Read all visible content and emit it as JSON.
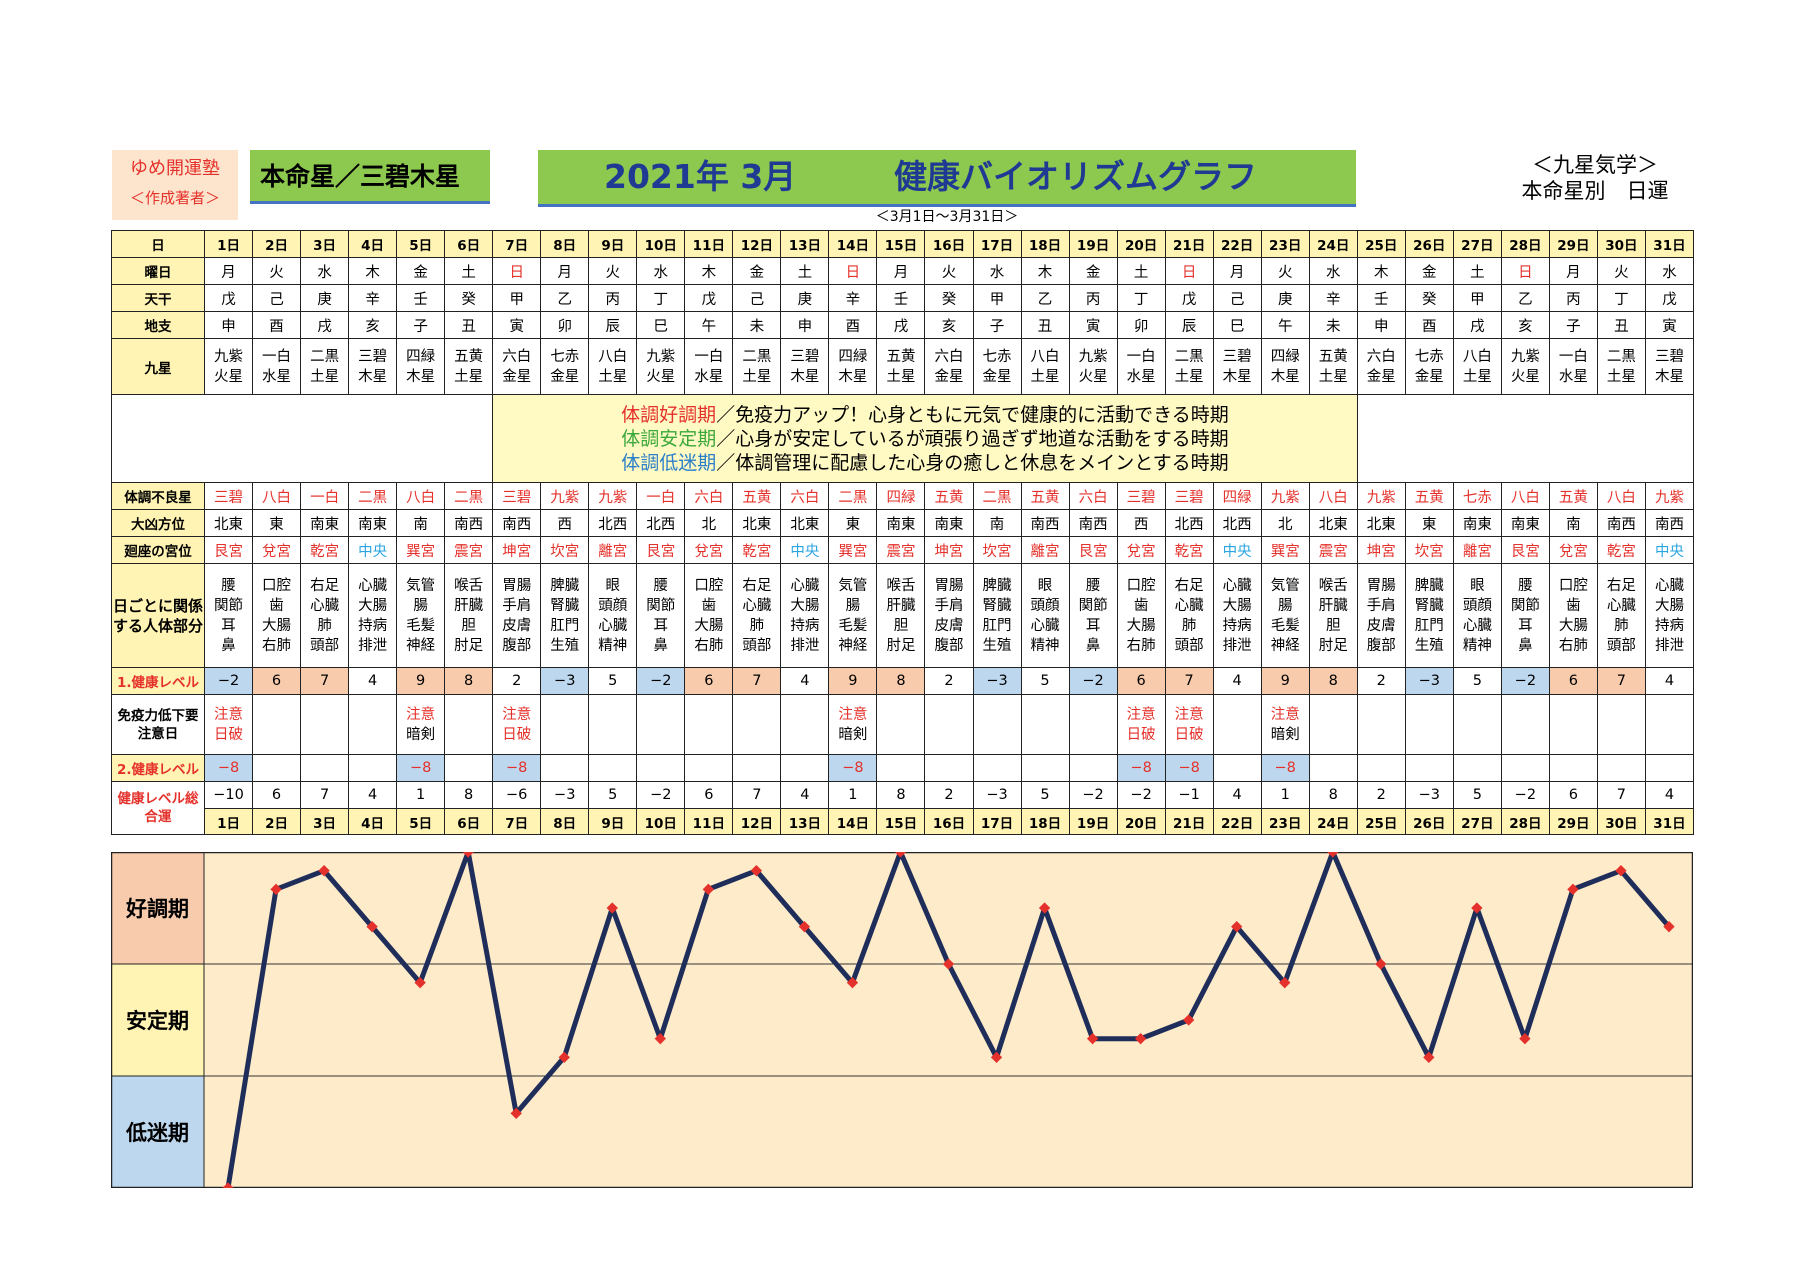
{
  "header": {
    "brand_line1": "ゆめ開運塾",
    "brand_line2": "＜作成著者＞",
    "honmei": "本命星／三碧木星",
    "year_month": "2021年 3月",
    "title": "健康バイオリズムグラフ",
    "range": "＜3月1日～3月31日＞",
    "kyusei_line1": "＜九星気学＞",
    "kyusei_line2": "本命星別　日運"
  },
  "row_labels": {
    "day": "日",
    "weekday": "曜日",
    "tenkan": "天干",
    "chishi": "地支",
    "kyusei": "九星",
    "bad_star": "体調不良星",
    "direction": "大凶方位",
    "palace": "廻座の宮位",
    "body": "日ごとに関係する人体部分",
    "health1": "1.健康レベル",
    "immune": "免疫力低下要注意日",
    "health2": "2.健康レベル",
    "total": "健康レベル総合運"
  },
  "legend": {
    "line1_term": "体調好調期",
    "line1_text": "／免疫力アップ！心身ともに元気で健康的に活動できる時期",
    "line2_term": "体調安定期",
    "line2_text": "／心身が安定しているが頑張り過ぎず地道な活動をする時期",
    "line3_term": "体調低迷期",
    "line3_text": "／体調管理に配慮した心身の癒しと休息をメインとする時期"
  },
  "days": [
    "1日",
    "2日",
    "3日",
    "4日",
    "5日",
    "6日",
    "7日",
    "8日",
    "9日",
    "10日",
    "11日",
    "12日",
    "13日",
    "14日",
    "15日",
    "16日",
    "17日",
    "18日",
    "19日",
    "20日",
    "21日",
    "22日",
    "23日",
    "24日",
    "25日",
    "26日",
    "27日",
    "28日",
    "29日",
    "30日",
    "31日"
  ],
  "weekdays": [
    "月",
    "火",
    "水",
    "木",
    "金",
    "土",
    "日",
    "月",
    "火",
    "水",
    "木",
    "金",
    "土",
    "日",
    "月",
    "火",
    "水",
    "木",
    "金",
    "土",
    "日",
    "月",
    "火",
    "水",
    "木",
    "金",
    "土",
    "日",
    "月",
    "火",
    "水"
  ],
  "tenkan": [
    "戊",
    "己",
    "庚",
    "辛",
    "壬",
    "癸",
    "甲",
    "乙",
    "丙",
    "丁",
    "戊",
    "己",
    "庚",
    "辛",
    "壬",
    "癸",
    "甲",
    "乙",
    "丙",
    "丁",
    "戊",
    "己",
    "庚",
    "辛",
    "壬",
    "癸",
    "甲",
    "乙",
    "丙",
    "丁",
    "戊"
  ],
  "chishi": [
    "申",
    "酉",
    "戌",
    "亥",
    "子",
    "丑",
    "寅",
    "卯",
    "辰",
    "巳",
    "午",
    "未",
    "申",
    "酉",
    "戌",
    "亥",
    "子",
    "丑",
    "寅",
    "卯",
    "辰",
    "巳",
    "午",
    "未",
    "申",
    "酉",
    "戌",
    "亥",
    "子",
    "丑",
    "寅"
  ],
  "kyusei": [
    [
      "九紫",
      "火星"
    ],
    [
      "一白",
      "水星"
    ],
    [
      "二黒",
      "土星"
    ],
    [
      "三碧",
      "木星"
    ],
    [
      "四緑",
      "木星"
    ],
    [
      "五黄",
      "土星"
    ],
    [
      "六白",
      "金星"
    ],
    [
      "七赤",
      "金星"
    ],
    [
      "八白",
      "土星"
    ],
    [
      "九紫",
      "火星"
    ],
    [
      "一白",
      "水星"
    ],
    [
      "二黒",
      "土星"
    ],
    [
      "三碧",
      "木星"
    ],
    [
      "四緑",
      "木星"
    ],
    [
      "五黄",
      "土星"
    ],
    [
      "六白",
      "金星"
    ],
    [
      "七赤",
      "金星"
    ],
    [
      "八白",
      "土星"
    ],
    [
      "九紫",
      "火星"
    ],
    [
      "一白",
      "水星"
    ],
    [
      "二黒",
      "土星"
    ],
    [
      "三碧",
      "木星"
    ],
    [
      "四緑",
      "木星"
    ],
    [
      "五黄",
      "土星"
    ],
    [
      "六白",
      "金星"
    ],
    [
      "七赤",
      "金星"
    ],
    [
      "八白",
      "土星"
    ],
    [
      "九紫",
      "火星"
    ],
    [
      "一白",
      "水星"
    ],
    [
      "二黒",
      "土星"
    ],
    [
      "三碧",
      "木星"
    ]
  ],
  "bad_star": [
    "三碧",
    "八白",
    "一白",
    "二黒",
    "八白",
    "二黒",
    "三碧",
    "九紫",
    "九紫",
    "一白",
    "六白",
    "五黄",
    "六白",
    "二黒",
    "四緑",
    "五黄",
    "二黒",
    "五黄",
    "六白",
    "三碧",
    "三碧",
    "四緑",
    "九紫",
    "八白",
    "九紫",
    "五黄",
    "七赤",
    "八白",
    "五黄",
    "八白",
    "九紫"
  ],
  "direction": [
    "北東",
    "東",
    "南東",
    "南東",
    "南",
    "南西",
    "南西",
    "西",
    "北西",
    "北西",
    "北",
    "北東",
    "北東",
    "東",
    "南東",
    "南東",
    "南",
    "南西",
    "南西",
    "西",
    "北西",
    "北西",
    "北",
    "北東",
    "北東",
    "東",
    "南東",
    "南東",
    "南",
    "南西",
    "南西"
  ],
  "palace": [
    "艮宮",
    "兌宮",
    "乾宮",
    "中央",
    "巽宮",
    "震宮",
    "坤宮",
    "坎宮",
    "離宮",
    "艮宮",
    "兌宮",
    "乾宮",
    "中央",
    "巽宮",
    "震宮",
    "坤宮",
    "坎宮",
    "離宮",
    "艮宮",
    "兌宮",
    "乾宮",
    "中央",
    "巽宮",
    "震宮",
    "坤宮",
    "坎宮",
    "離宮",
    "艮宮",
    "兌宮",
    "乾宮",
    "中央"
  ],
  "body": [
    [
      "腰",
      "関節",
      "耳",
      "鼻"
    ],
    [
      "口腔",
      "歯",
      "大腸",
      "右肺"
    ],
    [
      "右足",
      "心臓",
      "肺",
      "頭部"
    ],
    [
      "心臓",
      "大腸",
      "持病",
      "排泄"
    ],
    [
      "気管",
      "腸",
      "毛髪",
      "神経"
    ],
    [
      "喉舌",
      "肝臓",
      "胆",
      "肘足"
    ],
    [
      "胃腸",
      "手肩",
      "皮膚",
      "腹部"
    ],
    [
      "脾臓",
      "腎臓",
      "肛門",
      "生殖"
    ],
    [
      "眼",
      "頭顔",
      "心臓",
      "精神"
    ],
    [
      "腰",
      "関節",
      "耳",
      "鼻"
    ],
    [
      "口腔",
      "歯",
      "大腸",
      "右肺"
    ],
    [
      "右足",
      "心臓",
      "肺",
      "頭部"
    ],
    [
      "心臓",
      "大腸",
      "持病",
      "排泄"
    ],
    [
      "気管",
      "腸",
      "毛髪",
      "神経"
    ],
    [
      "喉舌",
      "肝臓",
      "胆",
      "肘足"
    ],
    [
      "胃腸",
      "手肩",
      "皮膚",
      "腹部"
    ],
    [
      "脾臓",
      "腎臓",
      "肛門",
      "生殖"
    ],
    [
      "眼",
      "頭顔",
      "心臓",
      "精神"
    ],
    [
      "腰",
      "関節",
      "耳",
      "鼻"
    ],
    [
      "口腔",
      "歯",
      "大腸",
      "右肺"
    ],
    [
      "右足",
      "心臓",
      "肺",
      "頭部"
    ],
    [
      "心臓",
      "大腸",
      "持病",
      "排泄"
    ],
    [
      "気管",
      "腸",
      "毛髪",
      "神経"
    ],
    [
      "喉舌",
      "肝臓",
      "胆",
      "肘足"
    ],
    [
      "胃腸",
      "手肩",
      "皮膚",
      "腹部"
    ],
    [
      "脾臓",
      "腎臓",
      "肛門",
      "生殖"
    ],
    [
      "眼",
      "頭顔",
      "心臓",
      "精神"
    ],
    [
      "腰",
      "関節",
      "耳",
      "鼻"
    ],
    [
      "口腔",
      "歯",
      "大腸",
      "右肺"
    ],
    [
      "右足",
      "心臓",
      "肺",
      "頭部"
    ],
    [
      "心臓",
      "大腸",
      "持病",
      "排泄"
    ]
  ],
  "health1": [
    "−2",
    "6",
    "7",
    "4",
    "9",
    "8",
    "2",
    "−3",
    "5",
    "−2",
    "6",
    "7",
    "4",
    "9",
    "8",
    "2",
    "−3",
    "5",
    "−2",
    "6",
    "7",
    "4",
    "9",
    "8",
    "2",
    "−3",
    "5",
    "−2",
    "6",
    "7",
    "4"
  ],
  "immune": [
    [
      "注意",
      "日破"
    ],
    [],
    [],
    [],
    [
      "注意",
      "暗剣"
    ],
    [],
    [
      "注意",
      "日破"
    ],
    [],
    [],
    [],
    [],
    [],
    [],
    [
      "注意",
      "暗剣"
    ],
    [],
    [],
    [],
    [],
    [],
    [
      "注意",
      "日破"
    ],
    [
      "注意",
      "日破"
    ],
    [],
    [
      "注意",
      "暗剣"
    ],
    [],
    [],
    [],
    [],
    [],
    [],
    [],
    []
  ],
  "health2": [
    "−8",
    "",
    "",
    "",
    "−8",
    "",
    "−8",
    "",
    "",
    "",
    "",
    "",
    "",
    "−8",
    "",
    "",
    "",
    "",
    "",
    "−8",
    "−8",
    "",
    "−8",
    "",
    "",
    "",
    "",
    "",
    "",
    "",
    ""
  ],
  "total": [
    "−10",
    "6",
    "7",
    "4",
    "1",
    "8",
    "−6",
    "−3",
    "5",
    "−2",
    "6",
    "7",
    "4",
    "1",
    "8",
    "2",
    "−3",
    "5",
    "−2",
    "−2",
    "−1",
    "4",
    "1",
    "8",
    "2",
    "−3",
    "5",
    "−2",
    "6",
    "7",
    "4"
  ],
  "colors": {
    "good_band": "#f8cbad",
    "stable_band": "#fff4b3",
    "low_band": "#bdd7ee",
    "chart_bg": "#fdebc9",
    "line": "#1f2d5a",
    "marker": "#e5312b",
    "header_green": "#8dc84f",
    "title_blue": "#1f3a93"
  },
  "chart_data": {
    "type": "line",
    "title": "",
    "x": [
      "1日",
      "2日",
      "3日",
      "4日",
      "5日",
      "6日",
      "7日",
      "8日",
      "9日",
      "10日",
      "11日",
      "12日",
      "13日",
      "14日",
      "15日",
      "16日",
      "17日",
      "18日",
      "19日",
      "20日",
      "21日",
      "22日",
      "23日",
      "24日",
      "25日",
      "26日",
      "27日",
      "28日",
      "29日",
      "30日",
      "31日"
    ],
    "series": [
      {
        "values": [
          -10,
          6,
          7,
          4,
          1,
          8,
          -6,
          -3,
          5,
          -2,
          6,
          7,
          4,
          1,
          8,
          2,
          -3,
          5,
          -2,
          -2,
          -1,
          4,
          1,
          8,
          2,
          -3,
          5,
          -2,
          6,
          7,
          4
        ]
      }
    ],
    "ylim": [
      -10,
      8
    ],
    "bands": [
      "好調期",
      "安定期",
      "低迷期"
    ],
    "grid": false
  }
}
